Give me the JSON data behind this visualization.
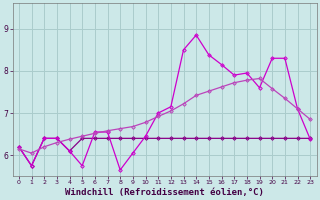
{
  "bg_color": "#cce8e8",
  "grid_color": "#aacccc",
  "line_flat_color": "#880088",
  "line_zigzag_color": "#cc00cc",
  "line_smooth_color": "#bb44bb",
  "xlabel": "Windchill (Refroidissement éolien,°C)",
  "xlabel_fontsize": 6.5,
  "xlim": [
    -0.5,
    23.5
  ],
  "ylim": [
    5.5,
    9.6
  ],
  "yticks": [
    6,
    7,
    8,
    9
  ],
  "xticks": [
    0,
    1,
    2,
    3,
    4,
    5,
    6,
    7,
    8,
    9,
    10,
    11,
    12,
    13,
    14,
    15,
    16,
    17,
    18,
    19,
    20,
    21,
    22,
    23
  ],
  "flat_x": [
    0,
    1,
    2,
    3,
    4,
    5,
    6,
    7,
    8,
    9,
    10,
    11,
    12,
    13,
    14,
    15,
    16,
    17,
    18,
    19,
    20,
    21,
    22,
    23
  ],
  "flat_y": [
    6.2,
    5.75,
    6.4,
    6.4,
    6.1,
    6.4,
    6.4,
    6.4,
    6.4,
    6.4,
    6.4,
    6.4,
    6.4,
    6.4,
    6.4,
    6.4,
    6.4,
    6.4,
    6.4,
    6.4,
    6.4,
    6.4,
    6.4,
    6.4
  ],
  "zigzag_x": [
    0,
    1,
    2,
    3,
    4,
    5,
    6,
    7,
    8,
    9,
    10,
    11,
    12,
    13,
    14,
    15,
    16,
    17,
    18,
    19,
    20,
    21,
    22,
    23
  ],
  "zigzag_y": [
    6.2,
    5.75,
    6.4,
    6.4,
    6.1,
    5.75,
    6.55,
    6.55,
    5.65,
    6.05,
    6.45,
    7.0,
    7.15,
    8.5,
    8.85,
    8.38,
    8.15,
    7.9,
    7.95,
    7.6,
    8.3,
    8.3,
    7.1,
    6.38
  ],
  "smooth_x": [
    0,
    1,
    2,
    3,
    4,
    5,
    6,
    7,
    8,
    9,
    10,
    11,
    12,
    13,
    14,
    15,
    16,
    17,
    18,
    19,
    20,
    21,
    22,
    23
  ],
  "smooth_y": [
    6.15,
    6.05,
    6.2,
    6.3,
    6.38,
    6.45,
    6.52,
    6.58,
    6.63,
    6.68,
    6.78,
    6.92,
    7.05,
    7.22,
    7.42,
    7.52,
    7.62,
    7.72,
    7.78,
    7.82,
    7.58,
    7.35,
    7.1,
    6.85
  ]
}
